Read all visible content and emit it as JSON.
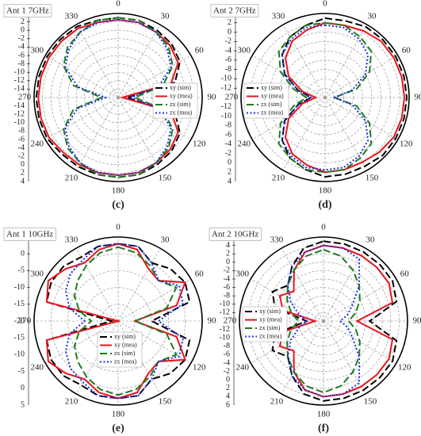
{
  "chart_data": [
    {
      "type": "polar",
      "title": "Ant 1 7GHz",
      "caption": "(c)",
      "theta": [
        0,
        15,
        30,
        45,
        60,
        75,
        90,
        105,
        120,
        135,
        150,
        165,
        180,
        195,
        210,
        225,
        240,
        255,
        270,
        285,
        300,
        315,
        330,
        345
      ],
      "thetaticks": [
        0,
        30,
        60,
        90,
        120,
        150,
        180,
        210,
        240,
        270,
        300,
        330
      ],
      "rlim": [
        -16,
        4
      ],
      "rticks": [
        -14,
        -12,
        -10,
        -8,
        -6,
        -4,
        -2,
        0,
        2,
        4
      ],
      "legend": "right",
      "grid": true,
      "series": [
        {
          "name": "xy (sim)",
          "color": "#000000",
          "dash": "dashed",
          "values": [
            3,
            3,
            2.5,
            2,
            1,
            -2,
            -14,
            -2,
            1,
            2,
            2.5,
            3,
            3,
            3,
            3,
            3,
            3.5,
            3.5,
            3.5,
            3.5,
            3.5,
            3.5,
            3.5,
            3
          ]
        },
        {
          "name": "xy (mea)",
          "color": "#e8141b",
          "dash": "solid",
          "values": [
            2.5,
            2.5,
            2,
            1.5,
            0.5,
            -3,
            -15,
            -3,
            0.5,
            1.5,
            2,
            2.5,
            2.5,
            2.5,
            2.5,
            2.5,
            3,
            3,
            3,
            3,
            3,
            3,
            3,
            2.5
          ]
        },
        {
          "name": "zx (sim)",
          "color": "#1f7a1f",
          "dash": "dashed",
          "values": [
            3,
            3,
            2,
            1,
            -1,
            -5,
            -12,
            -5,
            -1,
            1,
            2,
            3,
            3,
            3,
            2,
            1,
            -1,
            -5,
            -12,
            -5,
            -1,
            1,
            2,
            3
          ]
        },
        {
          "name": "zx (mea)",
          "color": "#1f2fe0",
          "dash": "dotted",
          "values": [
            2.5,
            2.5,
            2,
            0.5,
            -1.5,
            -6,
            -13,
            -6,
            -1.5,
            0.5,
            2,
            2.5,
            2.5,
            2.5,
            2,
            0.5,
            -1.5,
            -6,
            -13,
            -6,
            -1.5,
            0.5,
            2,
            2.5
          ]
        }
      ]
    },
    {
      "type": "polar",
      "title": "Ant 2 7GHz",
      "caption": "(d)",
      "theta": [
        0,
        15,
        30,
        45,
        60,
        75,
        90,
        105,
        120,
        135,
        150,
        165,
        180,
        195,
        210,
        225,
        240,
        255,
        270,
        285,
        300,
        315,
        330,
        345
      ],
      "thetaticks": [
        0,
        30,
        60,
        90,
        120,
        150,
        180,
        210,
        240,
        270,
        300,
        330
      ],
      "rlim": [
        -14,
        4
      ],
      "rticks": [
        -12,
        -10,
        -8,
        -6,
        -4,
        -2,
        0,
        2,
        4
      ],
      "legend": "left",
      "grid": true,
      "series": [
        {
          "name": "xy (sim)",
          "color": "#000000",
          "dash": "dashed",
          "values": [
            3,
            3,
            3.5,
            3.5,
            3.5,
            3.5,
            3.5,
            3.5,
            3.5,
            3.5,
            3,
            3,
            3,
            2,
            1,
            -1,
            -4,
            -8,
            -11,
            -8,
            -4,
            -1,
            1,
            2
          ]
        },
        {
          "name": "xy (mea)",
          "color": "#e8141b",
          "dash": "solid",
          "values": [
            2,
            2,
            2.5,
            3,
            3,
            3,
            3,
            3,
            3,
            2.5,
            2,
            2,
            2,
            1,
            0,
            -2,
            -5,
            -9,
            -12,
            -9,
            -5,
            -2,
            0,
            1
          ]
        },
        {
          "name": "zx (sim)",
          "color": "#1f7a1f",
          "dash": "dashed",
          "values": [
            2,
            2,
            1,
            0,
            -3,
            -7,
            -12,
            -7,
            -3,
            0,
            1,
            2,
            2,
            2,
            1,
            0,
            -3,
            -7,
            -10,
            -7,
            -3,
            0,
            1,
            2
          ]
        },
        {
          "name": "zx (mea)",
          "color": "#1f2fe0",
          "dash": "dotted",
          "values": [
            1.5,
            1.5,
            0.5,
            -1,
            -4,
            -8,
            -12,
            -8,
            -4,
            -1,
            0.5,
            1.5,
            1.5,
            1.5,
            0.5,
            -1,
            -4,
            -8,
            -11,
            -8,
            -4,
            -1,
            0.5,
            1.5
          ]
        }
      ]
    },
    {
      "type": "polar",
      "title": "Ant 1 10GHz",
      "caption": "(e)",
      "theta": [
        0,
        15,
        30,
        45,
        60,
        75,
        90,
        105,
        120,
        135,
        150,
        165,
        180,
        195,
        210,
        225,
        240,
        255,
        270,
        285,
        300,
        315,
        330,
        345
      ],
      "thetaticks": [
        0,
        30,
        60,
        90,
        120,
        150,
        180,
        210,
        240,
        270,
        300,
        330
      ],
      "rlim": [
        -20,
        5
      ],
      "rticks": [
        -20,
        -15,
        -10,
        -5,
        0,
        5
      ],
      "legend": "bottom",
      "grid": true,
      "series": [
        {
          "name": "xy (sim)",
          "color": "#000000",
          "dash": "dashed",
          "values": [
            3,
            3,
            0,
            2,
            3,
            2,
            -10,
            2,
            3,
            2,
            0,
            3,
            3,
            3,
            2,
            3,
            3,
            2,
            -18,
            2,
            3,
            3,
            2,
            3
          ]
        },
        {
          "name": "xy (mea)",
          "color": "#e8141b",
          "dash": "solid",
          "values": [
            3,
            2,
            -2,
            -3,
            3,
            -2,
            -15,
            -2,
            3,
            -3,
            -2,
            2,
            3,
            2,
            0,
            2,
            4,
            2,
            -20,
            2,
            4,
            2,
            0,
            2
          ]
        },
        {
          "name": "zx (sim)",
          "color": "#1f7a1f",
          "dash": "dashed",
          "values": [
            2,
            1,
            -1,
            -3,
            0,
            -5,
            -15,
            -5,
            0,
            -3,
            -1,
            1,
            2,
            1,
            -1,
            -3,
            -5,
            -8,
            -12,
            -8,
            -5,
            -3,
            -1,
            1
          ]
        },
        {
          "name": "zx (mea)",
          "color": "#1f2fe0",
          "dash": "dotted",
          "values": [
            3,
            3,
            0,
            -3,
            1,
            0,
            -8,
            0,
            1,
            -3,
            0,
            3,
            3,
            3,
            1,
            0,
            -2,
            -5,
            -10,
            -5,
            -2,
            0,
            1,
            3
          ]
        }
      ]
    },
    {
      "type": "polar",
      "title": "Ant 2 10GHz",
      "caption": "(f)",
      "theta": [
        0,
        15,
        30,
        45,
        60,
        75,
        90,
        105,
        120,
        135,
        150,
        165,
        180,
        195,
        210,
        225,
        240,
        255,
        270,
        285,
        300,
        315,
        330,
        345
      ],
      "thetaticks": [
        0,
        30,
        60,
        90,
        120,
        150,
        180,
        210,
        240,
        270,
        300,
        330
      ],
      "rlim": [
        -14,
        6
      ],
      "rticks": [
        -12,
        -10,
        -8,
        -6,
        -4,
        -2,
        0,
        2,
        4,
        6
      ],
      "legend": "left",
      "grid": true,
      "series": [
        {
          "name": "xy (sim)",
          "color": "#000000",
          "dash": "dashed",
          "values": [
            5,
            5,
            5,
            5,
            5,
            4,
            -3,
            4,
            5,
            5,
            5,
            5,
            5,
            4,
            1,
            -2,
            0,
            -2,
            -10,
            -2,
            0,
            -2,
            1,
            4
          ]
        },
        {
          "name": "xy (mea)",
          "color": "#e8141b",
          "dash": "solid",
          "values": [
            4,
            4,
            4,
            4,
            4,
            3,
            -6,
            3,
            4,
            4,
            4,
            4,
            4,
            3,
            0,
            -4,
            -2,
            -4,
            -12,
            -4,
            -2,
            -4,
            0,
            3
          ]
        },
        {
          "name": "zx (sim)",
          "color": "#1f7a1f",
          "dash": "dashed",
          "values": [
            3,
            2,
            0,
            -2,
            -4,
            -6,
            -8,
            -6,
            -4,
            -2,
            0,
            2,
            3,
            2,
            0,
            -2,
            -4,
            -6,
            -8,
            -6,
            -4,
            -2,
            0,
            2
          ]
        },
        {
          "name": "zx (mea)",
          "color": "#1f2fe0",
          "dash": "dotted",
          "values": [
            4,
            4,
            3,
            -2,
            -6,
            -8,
            -10,
            -8,
            -6,
            -2,
            3,
            4,
            4,
            3,
            1,
            -2,
            -5,
            -8,
            -10,
            -8,
            -5,
            -2,
            1,
            3
          ]
        }
      ]
    }
  ]
}
